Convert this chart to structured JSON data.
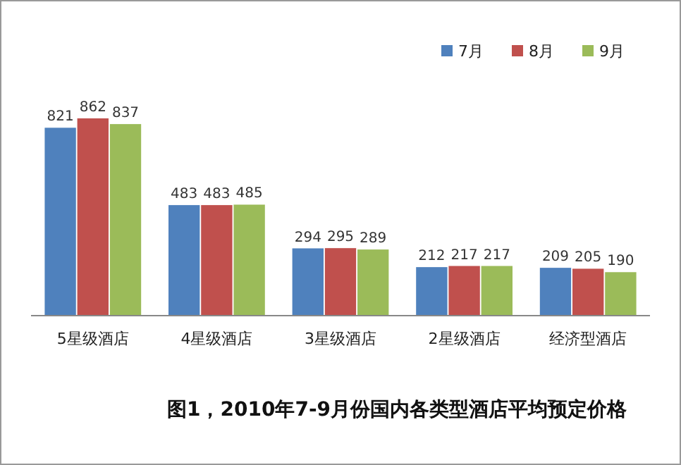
{
  "chart_data": {
    "type": "bar",
    "title": "图1，2010年7-9月份国内各类型酒店平均预定价格",
    "categories": [
      "5星级酒店",
      "4星级酒店",
      "3星级酒店",
      "2星级酒店",
      "经济型酒店"
    ],
    "series": [
      {
        "name": "7月",
        "color": "#4f81bd",
        "values": [
          821,
          483,
          294,
          212,
          209
        ]
      },
      {
        "name": "8月",
        "color": "#c0504d",
        "values": [
          862,
          483,
          295,
          217,
          205
        ]
      },
      {
        "name": "9月",
        "color": "#9bbb59",
        "values": [
          837,
          485,
          289,
          217,
          190
        ]
      }
    ],
    "data_labels": true,
    "legend": "top right",
    "grid": false
  }
}
